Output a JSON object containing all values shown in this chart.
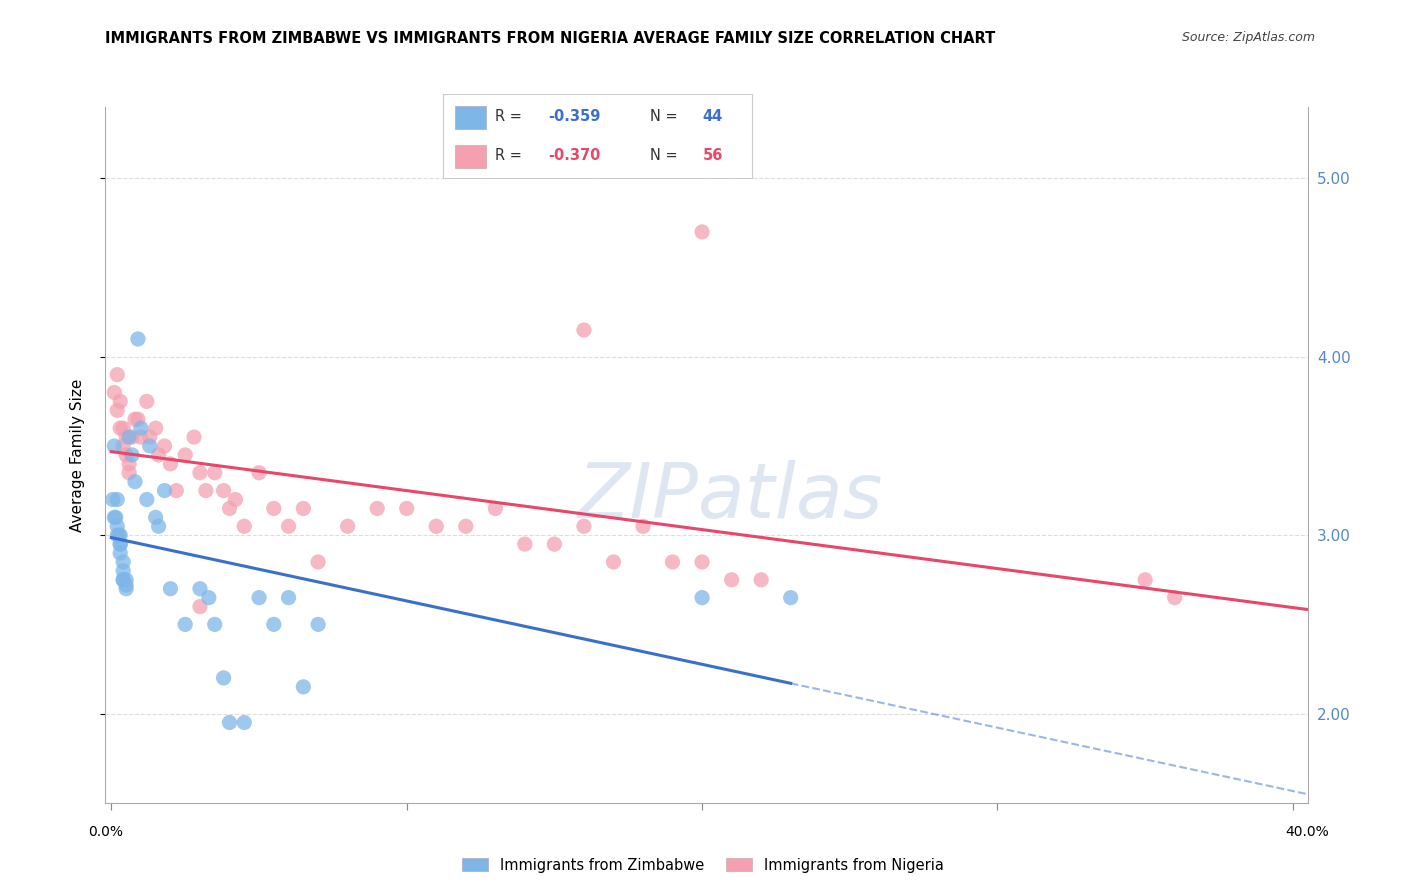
{
  "title": "IMMIGRANTS FROM ZIMBABWE VS IMMIGRANTS FROM NIGERIA AVERAGE FAMILY SIZE CORRELATION CHART",
  "source": "Source: ZipAtlas.com",
  "ylabel": "Average Family Size",
  "yticks": [
    2.0,
    3.0,
    4.0,
    5.0
  ],
  "ylim": [
    1.5,
    5.4
  ],
  "xlim": [
    -0.002,
    0.405
  ],
  "zimbabwe_color": "#7EB6E8",
  "nigeria_color": "#F4A0B0",
  "line_blue": "#3B6FCC",
  "line_pink": "#E8466A",
  "zimbabwe_R": -0.359,
  "zimbabwe_N": 44,
  "nigeria_R": -0.37,
  "nigeria_N": 56,
  "legend_label_zimbabwe": "Immigrants from Zimbabwe",
  "legend_label_nigeria": "Immigrants from Nigeria",
  "background_color": "#FFFFFF",
  "grid_color": "#DDDDDD",
  "right_tick_color": "#5588CC",
  "title_fontsize": 10.5,
  "zimbabwe_x": [
    0.0005,
    0.001,
    0.001,
    0.0015,
    0.002,
    0.002,
    0.002,
    0.0025,
    0.003,
    0.003,
    0.003,
    0.003,
    0.004,
    0.004,
    0.004,
    0.004,
    0.005,
    0.005,
    0.005,
    0.006,
    0.007,
    0.008,
    0.009,
    0.01,
    0.012,
    0.013,
    0.015,
    0.016,
    0.018,
    0.02,
    0.025,
    0.03,
    0.033,
    0.035,
    0.038,
    0.04,
    0.045,
    0.05,
    0.055,
    0.06,
    0.065,
    0.07,
    0.2,
    0.23
  ],
  "zimbabwe_y": [
    3.2,
    3.5,
    3.1,
    3.1,
    3.2,
    3.05,
    3.0,
    3.0,
    3.0,
    2.95,
    2.95,
    2.9,
    2.85,
    2.8,
    2.75,
    2.75,
    2.75,
    2.72,
    2.7,
    3.55,
    3.45,
    3.3,
    4.1,
    3.6,
    3.2,
    3.5,
    3.1,
    3.05,
    3.25,
    2.7,
    2.5,
    2.7,
    2.65,
    2.5,
    2.2,
    1.95,
    1.95,
    2.65,
    2.5,
    2.65,
    2.15,
    2.5,
    2.65,
    2.65
  ],
  "nigeria_x": [
    0.001,
    0.002,
    0.002,
    0.003,
    0.003,
    0.004,
    0.004,
    0.005,
    0.005,
    0.006,
    0.006,
    0.007,
    0.008,
    0.009,
    0.01,
    0.012,
    0.013,
    0.015,
    0.016,
    0.018,
    0.02,
    0.022,
    0.025,
    0.028,
    0.03,
    0.032,
    0.035,
    0.038,
    0.04,
    0.042,
    0.045,
    0.05,
    0.055,
    0.06,
    0.065,
    0.07,
    0.08,
    0.09,
    0.1,
    0.11,
    0.12,
    0.13,
    0.14,
    0.15,
    0.16,
    0.17,
    0.18,
    0.19,
    0.2,
    0.21,
    0.22,
    0.35,
    0.36,
    0.2,
    0.16,
    0.03
  ],
  "nigeria_y": [
    3.8,
    3.9,
    3.7,
    3.75,
    3.6,
    3.6,
    3.5,
    3.55,
    3.45,
    3.4,
    3.35,
    3.55,
    3.65,
    3.65,
    3.55,
    3.75,
    3.55,
    3.6,
    3.45,
    3.5,
    3.4,
    3.25,
    3.45,
    3.55,
    3.35,
    3.25,
    3.35,
    3.25,
    3.15,
    3.2,
    3.05,
    3.35,
    3.15,
    3.05,
    3.15,
    2.85,
    3.05,
    3.15,
    3.15,
    3.05,
    3.05,
    3.15,
    2.95,
    2.95,
    3.05,
    2.85,
    3.05,
    2.85,
    2.85,
    2.75,
    2.75,
    2.75,
    2.65,
    4.7,
    4.15,
    2.6
  ],
  "watermark_color": "#C8D8E8",
  "watermark_alpha": 0.6
}
